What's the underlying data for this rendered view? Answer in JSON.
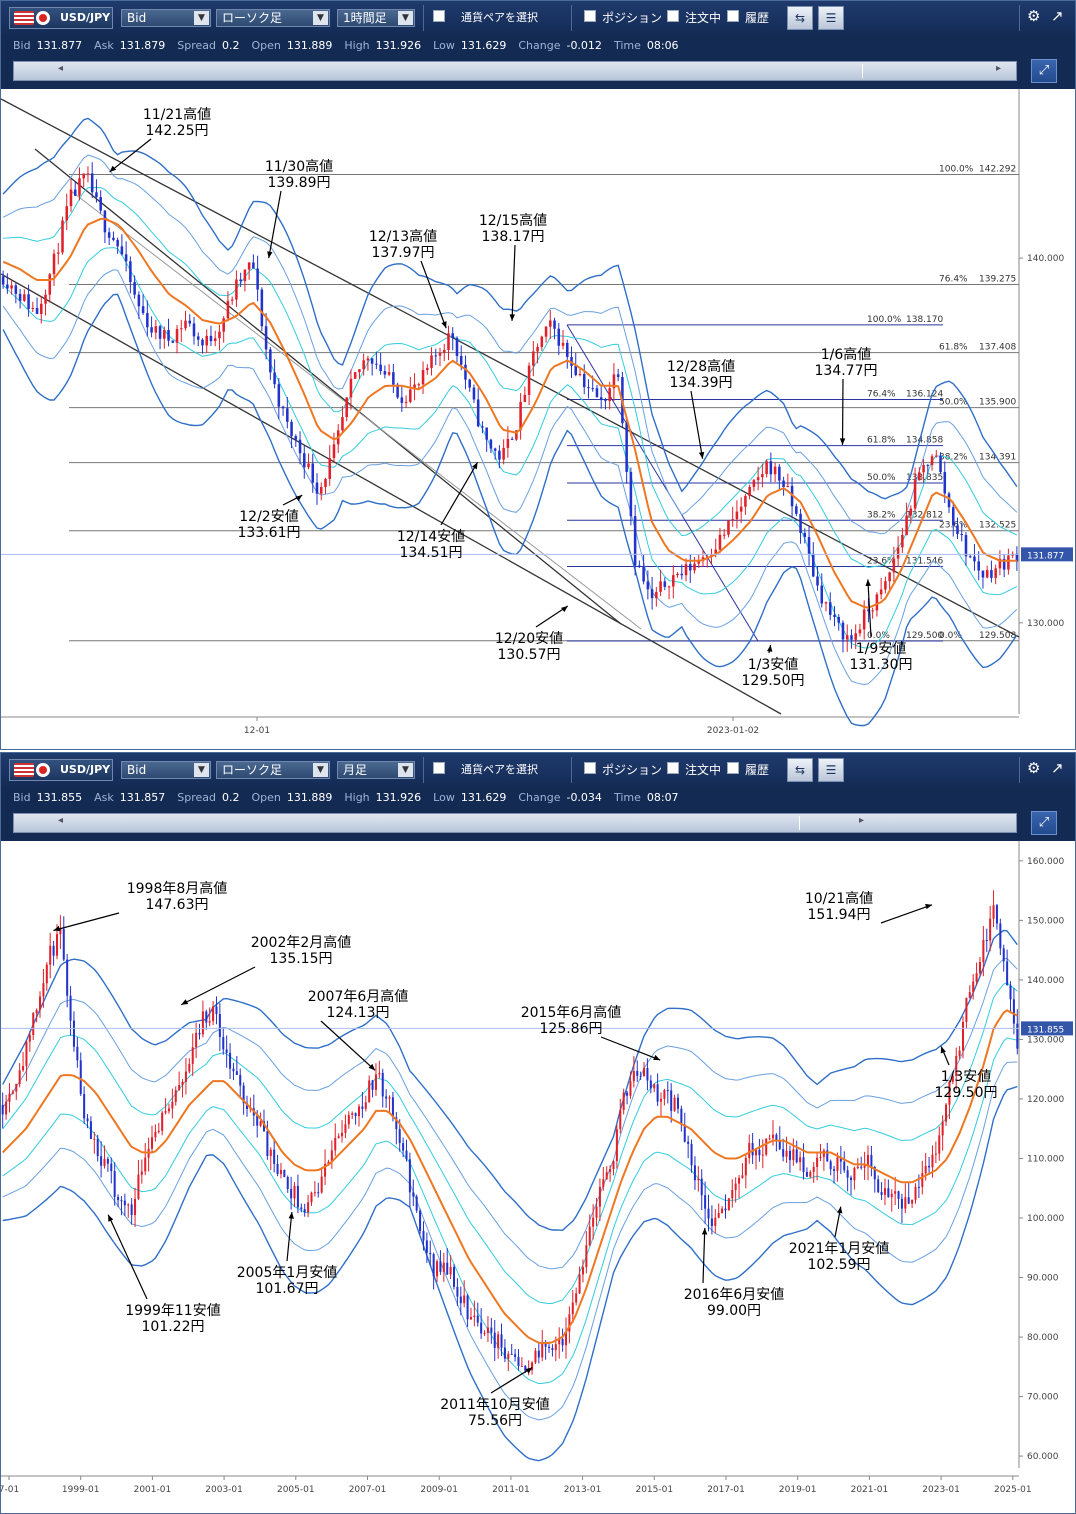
{
  "top_panel": {
    "symbol": "USD/JPY",
    "price_type": "Bid",
    "chart_style": "ローソク足",
    "timeframe": "1時間足",
    "pair_select": "通貨ペアを選択",
    "position": "ポジション",
    "orders": "注文中",
    "history": "履歴",
    "quote": {
      "bid_label": "Bid",
      "bid": "131.877",
      "ask_label": "Ask",
      "ask": "131.879",
      "spread_label": "Spread",
      "spread": "0.2",
      "open_label": "Open",
      "open": "131.889",
      "high_label": "High",
      "high": "131.926",
      "low_label": "Low",
      "low": "131.629",
      "change_label": "Change",
      "change": "-0.012",
      "time_label": "Time",
      "time": "08:06"
    }
  },
  "bottom_panel": {
    "symbol": "USD/JPY",
    "price_type": "Bid",
    "chart_style": "ローソク足",
    "timeframe": "月足",
    "pair_select": "通貨ペアを選択",
    "position": "ポジション",
    "orders": "注文中",
    "history": "履歴",
    "quote": {
      "bid_label": "Bid",
      "bid": "131.855",
      "ask_label": "Ask",
      "ask": "131.857",
      "spread_label": "Spread",
      "spread": "0.2",
      "open_label": "Open",
      "open": "131.889",
      "high_label": "High",
      "high": "131.926",
      "low_label": "Low",
      "low": "131.629",
      "change_label": "Change",
      "change": "-0.034",
      "time_label": "Time",
      "time": "08:07"
    }
  },
  "icons": {
    "dropdown": "chevron-down-icon",
    "checkbox": "checkbox-icon",
    "settings": "gear-icon",
    "popout": "external-window-icon",
    "scroll_left": "arrow-left-icon",
    "scroll_right": "arrow-right-icon"
  },
  "colors": {
    "toolbar_bg": "#1c3660",
    "bull_candle": "#e0202a",
    "bear_candle": "#2233cc",
    "ma_line": "#ee7722",
    "band_outer": "#2f6fc8",
    "band_mid": "#6aa0e0",
    "band_inner": "#33ccdd",
    "current_price_line": "#aabbee",
    "current_price_tag": "#3355aa"
  },
  "chart_data": [
    {
      "type": "candlestick",
      "timeframe": "1時間足",
      "x_tick_labels": [
        "12-01",
        "2023-01-02"
      ],
      "y_tick_labels": [
        "140.000",
        "130.000"
      ],
      "ylim": [
        127.5,
        144.5
      ],
      "current_price": "131.877",
      "price_path": [
        139.5,
        139.0,
        138.5,
        139.8,
        141.6,
        142.25,
        141.0,
        140.3,
        138.8,
        138.0,
        137.8,
        138.3,
        137.6,
        138.1,
        139.2,
        139.89,
        137.0,
        135.5,
        134.6,
        133.61,
        134.8,
        136.6,
        137.4,
        136.8,
        136.2,
        136.5,
        137.3,
        137.97,
        136.4,
        135.0,
        134.51,
        135.6,
        137.5,
        138.17,
        137.3,
        136.6,
        136.0,
        137.0,
        131.8,
        130.57,
        131.2,
        131.4,
        131.8,
        132.2,
        132.9,
        133.6,
        134.39,
        133.8,
        132.6,
        131.0,
        130.0,
        129.5,
        130.3,
        130.9,
        132.3,
        133.9,
        134.77,
        133.0,
        131.9,
        131.3,
        131.6,
        131.877
      ],
      "ma_path": [
        139.9,
        139.7,
        139.4,
        139.4,
        140.0,
        140.9,
        141.1,
        140.9,
        140.3,
        139.6,
        139.0,
        138.7,
        138.3,
        138.2,
        138.4,
        138.8,
        138.3,
        137.4,
        136.4,
        135.3,
        135.0,
        135.5,
        136.2,
        136.5,
        136.5,
        136.4,
        136.7,
        137.2,
        136.9,
        136.2,
        135.3,
        135.2,
        136.0,
        137.0,
        137.2,
        136.9,
        136.5,
        136.5,
        134.8,
        132.8,
        132.0,
        131.7,
        131.7,
        131.9,
        132.3,
        132.8,
        133.5,
        133.7,
        133.3,
        132.4,
        131.4,
        130.6,
        130.4,
        130.6,
        131.4,
        132.5,
        133.6,
        133.4,
        132.7,
        131.9,
        131.7,
        131.7
      ],
      "band_width": 1.3,
      "annotations": [
        {
          "line1": "11/21高値",
          "line2": "142.25円"
        },
        {
          "line1": "11/30高値",
          "line2": "139.89円"
        },
        {
          "line1": "12/13高値",
          "line2": "137.97円"
        },
        {
          "line1": "12/15高値",
          "line2": "138.17円"
        },
        {
          "line1": "12/28高値",
          "line2": "134.39円"
        },
        {
          "line1": "1/6高値",
          "line2": "134.77円"
        },
        {
          "line1": "12/2安値",
          "line2": "133.61円"
        },
        {
          "line1": "12/14安値",
          "line2": "134.51円"
        },
        {
          "line1": "12/20安値",
          "line2": "130.57円"
        },
        {
          "line1": "1/3安値",
          "line2": "129.50円"
        },
        {
          "line1": "1/9安値",
          "line2": "131.30円"
        }
      ],
      "fibonacci": [
        {
          "set": "A",
          "label": "100.0%",
          "value": "142.292"
        },
        {
          "set": "A",
          "label": "76.4%",
          "value": "139.275"
        },
        {
          "set": "A",
          "label": "61.8%",
          "value": "137.408"
        },
        {
          "set": "A",
          "label": "50.0%",
          "value": "135.900"
        },
        {
          "set": "A",
          "label": "38.2%",
          "value": "134.391"
        },
        {
          "set": "A",
          "label": "23.6%",
          "value": "132.525"
        },
        {
          "set": "A",
          "label": "0.0%",
          "value": "129.508"
        },
        {
          "set": "B",
          "label": "100.0%",
          "value": "138.170"
        },
        {
          "set": "B",
          "label": "76.4%",
          "value": "136.124"
        },
        {
          "set": "B",
          "label": "61.8%",
          "value": "134.858"
        },
        {
          "set": "B",
          "label": "50.0%",
          "value": "133.835"
        },
        {
          "set": "B",
          "label": "38.2%",
          "value": "132.812"
        },
        {
          "set": "B",
          "label": "23.6%",
          "value": "131.546"
        },
        {
          "set": "B",
          "label": "0.0%",
          "value": "129.500"
        }
      ]
    },
    {
      "type": "candlestick",
      "timeframe": "月足",
      "x_tick_labels": [
        "7-01",
        "1999-01",
        "2001-01",
        "2003-01",
        "2005-01",
        "2007-01",
        "2009-01",
        "2011-01",
        "2013-01",
        "2015-01",
        "2017-01",
        "2019-01",
        "2021-01",
        "2023-01",
        "2025-01"
      ],
      "y_tick_labels": [
        "160.000",
        "150.000",
        "140.000",
        "130.000",
        "120.000",
        "110.000",
        "100.000",
        "90.000",
        "80.000",
        "70.000",
        "60.000"
      ],
      "ylim": [
        58,
        163
      ],
      "current_price": "131.855",
      "price_path": [
        119,
        123,
        128,
        136,
        144,
        147.63,
        131,
        118,
        112,
        108,
        103,
        101.22,
        110,
        115,
        118,
        121,
        127,
        133,
        135.15,
        128,
        123,
        119,
        116,
        110,
        106,
        104,
        101.67,
        105,
        110,
        115,
        118,
        120,
        124.13,
        120,
        114,
        105,
        96,
        91,
        92,
        88,
        84,
        82,
        80,
        78,
        76,
        75.56,
        77,
        79,
        80,
        85,
        96,
        103,
        107,
        118,
        124,
        125.86,
        121,
        120,
        118,
        109,
        103,
        99.0,
        102,
        106,
        111,
        112,
        113,
        111,
        110,
        108,
        112,
        108,
        109,
        107,
        110,
        105,
        104,
        102.59,
        104,
        108,
        112,
        120,
        128,
        140,
        145,
        151.94,
        140,
        129.5
      ],
      "ma_path": [
        111,
        113,
        115,
        118,
        121,
        124,
        124,
        123,
        121,
        118,
        115,
        112,
        111,
        111,
        113,
        116,
        119,
        121,
        123,
        123,
        121,
        119,
        117,
        114,
        111,
        109,
        108,
        108,
        109,
        111,
        113,
        115,
        118,
        118,
        116,
        113,
        109,
        105,
        101,
        97,
        93,
        90,
        87,
        84,
        82,
        80,
        79,
        79,
        80,
        83,
        88,
        94,
        100,
        106,
        111,
        115,
        117,
        117,
        116,
        115,
        113,
        111,
        110,
        110,
        111,
        112,
        113,
        113,
        112,
        111,
        111,
        111,
        110,
        109,
        109,
        108,
        107,
        106,
        106,
        107,
        108,
        110,
        114,
        119,
        125,
        132,
        135,
        134
      ],
      "band_width": 8,
      "annotations": [
        {
          "line1": "1998年8月高値",
          "line2": "147.63円"
        },
        {
          "line1": "2002年2月高値",
          "line2": "135.15円"
        },
        {
          "line1": "2007年6月高値",
          "line2": "124.13円"
        },
        {
          "line1": "2015年6月高値",
          "line2": "125.86円"
        },
        {
          "line1": "10/21高値",
          "line2": "151.94円"
        },
        {
          "line1": "1999年11安値",
          "line2": "101.22円"
        },
        {
          "line1": "2005年1月安値",
          "line2": "101.67円"
        },
        {
          "line1": "2011年10月安値",
          "line2": "75.56円"
        },
        {
          "line1": "2016年6月安値",
          "line2": "99.00円"
        },
        {
          "line1": "2021年1月安値",
          "line2": "102.59円"
        },
        {
          "line1": "1/3安値",
          "line2": "129.50円"
        }
      ]
    }
  ]
}
